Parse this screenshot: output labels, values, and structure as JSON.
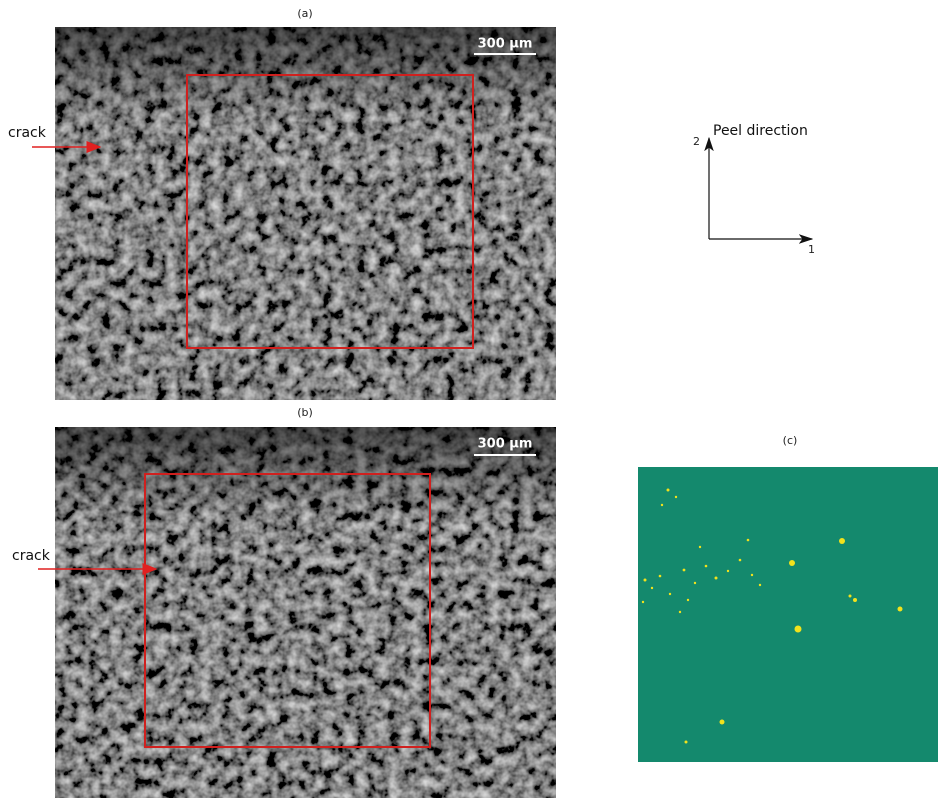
{
  "panels": {
    "a": {
      "label": "(a)",
      "scale_bar": "300 μm",
      "annotation": "crack"
    },
    "b": {
      "label": "(b)",
      "scale_bar": "300 μm",
      "annotation": "crack"
    },
    "c": {
      "label": "(c)"
    }
  },
  "axes_diagram": {
    "y_label": "2",
    "title": "Peel direction",
    "x_label": "1"
  }
}
